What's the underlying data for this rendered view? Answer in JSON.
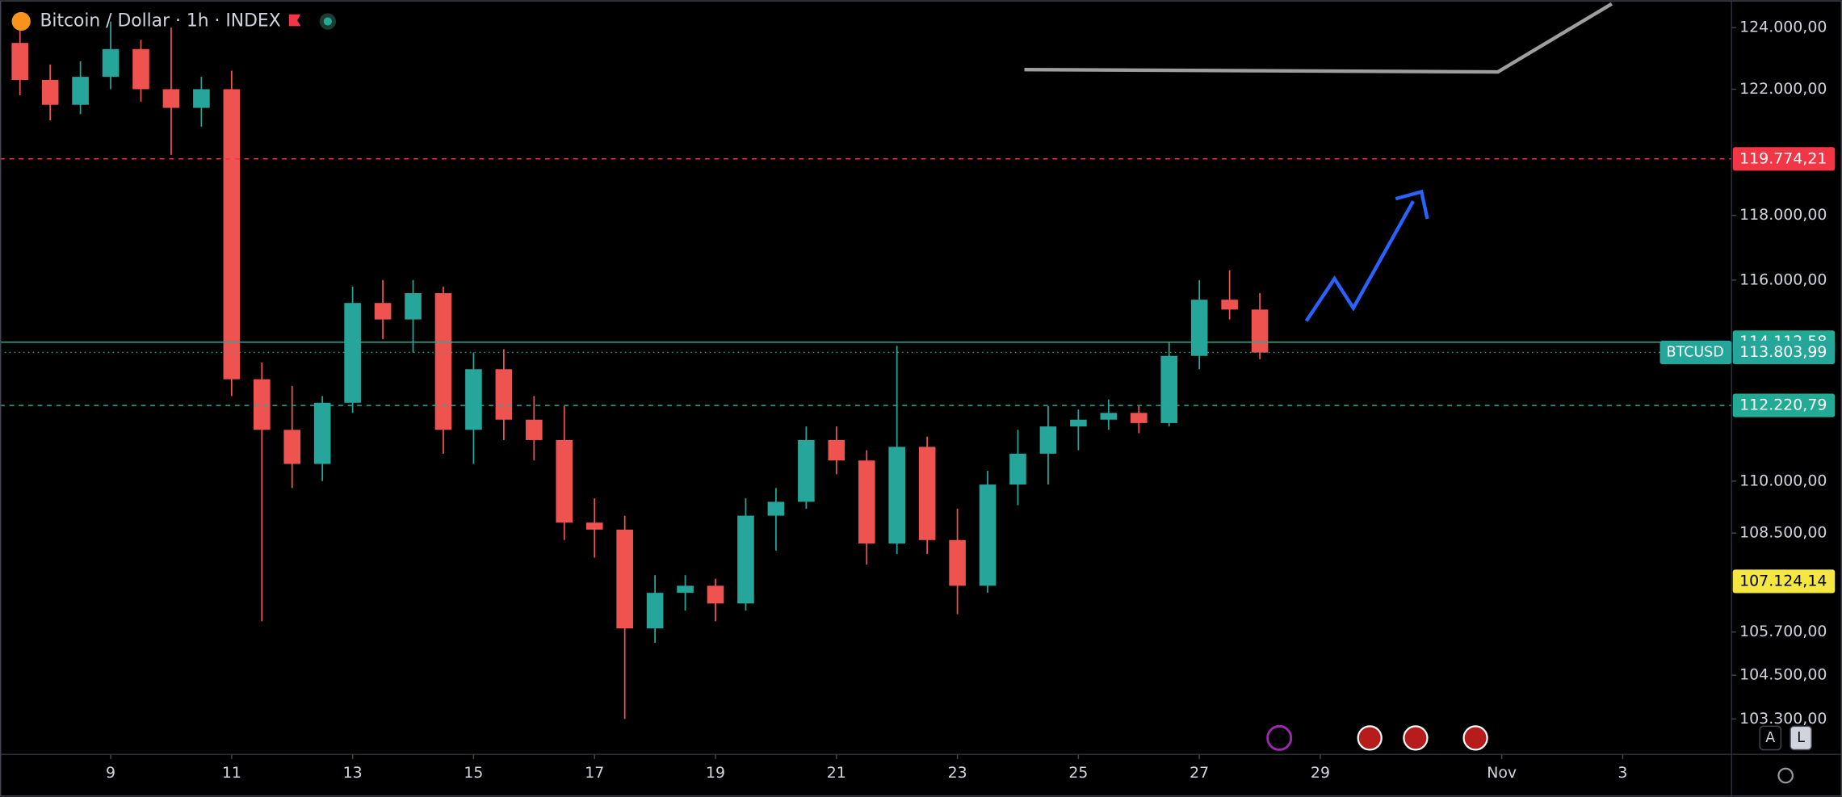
{
  "chart_data": {
    "type": "candlestick",
    "title": "Bitcoin / Dollar · 1h · INDEX",
    "log_scale": true,
    "up_color": "#26a69a",
    "down_color": "#ef5350",
    "x": [
      7.5,
      8,
      8.5,
      9,
      9.5,
      10,
      10.5,
      11,
      11.5,
      12,
      12.5,
      13,
      13.5,
      14,
      14.5,
      15,
      15.5,
      16,
      16.5,
      17,
      17.5,
      18,
      18.5,
      19,
      19.5,
      20,
      20.5,
      21,
      21.5,
      22,
      22.5,
      23,
      23.5,
      24,
      24.5,
      25,
      25.5,
      26,
      26.5,
      27,
      27.5,
      28
    ],
    "open": [
      123500,
      122300,
      121500,
      122400,
      123300,
      122000,
      121400,
      122000,
      113000,
      111500,
      110500,
      112300,
      115300,
      114800,
      115600,
      111500,
      113300,
      111800,
      111200,
      108800,
      108600,
      105800,
      106800,
      107000,
      106500,
      109000,
      109400,
      111200,
      110600,
      108200,
      111000,
      108300,
      107000,
      109900,
      110800,
      111600,
      111800,
      112000,
      111700,
      113700,
      115400,
      115100
    ],
    "high": [
      124300,
      122800,
      122900,
      124200,
      123600,
      124000,
      122400,
      122600,
      113500,
      112800,
      112500,
      115800,
      116000,
      116000,
      115800,
      113800,
      113900,
      112500,
      112200,
      109500,
      109000,
      107300,
      107300,
      107200,
      109500,
      109800,
      111600,
      111600,
      110900,
      114000,
      111300,
      109200,
      110300,
      111500,
      112200,
      112100,
      112400,
      112200,
      114100,
      116000,
      116300,
      115600
    ],
    "low": [
      121800,
      121000,
      121200,
      122000,
      121600,
      119900,
      120800,
      112500,
      106000,
      109800,
      110000,
      112000,
      114200,
      113800,
      110800,
      110500,
      111200,
      110600,
      108300,
      107800,
      103300,
      105400,
      106300,
      106000,
      106300,
      108000,
      109200,
      110200,
      107600,
      107900,
      107900,
      106200,
      106800,
      109300,
      109900,
      110900,
      111500,
      111400,
      111600,
      113300,
      114800,
      113600
    ],
    "close": [
      122300,
      121500,
      122400,
      123300,
      122000,
      121400,
      122000,
      113000,
      111500,
      110500,
      112300,
      115300,
      114800,
      115600,
      111500,
      113300,
      111800,
      111200,
      108800,
      108600,
      105800,
      106800,
      107000,
      106500,
      109000,
      109400,
      111200,
      110600,
      108200,
      111000,
      108300,
      107000,
      109900,
      110800,
      111600,
      111800,
      112000,
      111700,
      113700,
      115400,
      115100,
      113800
    ],
    "xlim": [
      7.17,
      35.8
    ],
    "xticks": [
      9,
      11,
      13,
      15,
      17,
      19,
      21,
      23,
      25,
      27,
      29,
      {
        "value": 32,
        "label": "Nov"
      },
      {
        "value": 34,
        "label": "3"
      }
    ],
    "ylim": [
      102400,
      124900
    ],
    "yticks": [
      {
        "value": 124000,
        "label": "124.000,00"
      },
      {
        "value": 122000,
        "label": "122.000,00"
      },
      {
        "value": 118000,
        "label": "118.000,00"
      },
      {
        "value": 116000,
        "label": "116.000,00"
      },
      {
        "value": 110000,
        "label": "110.000,00"
      },
      {
        "value": 108500,
        "label": "108.500,00"
      },
      {
        "value": 105700,
        "label": "105.700,00"
      },
      {
        "value": 104500,
        "label": "104.500,00"
      },
      {
        "value": 103300,
        "label": "103.300,00"
      }
    ],
    "price_lines": [
      {
        "price": {
          "value": 119774.21,
          "label": "119.774,21"
        },
        "color": "#f23645",
        "dash": "4 4"
      },
      {
        "price": {
          "value": 114112.58,
          "label": "114.112,58"
        },
        "color": "#22ab94",
        "dash": "none"
      },
      {
        "price": {
          "value": 113803.99,
          "label": "113.803,99"
        },
        "color": "#26a69a",
        "dash": "1 3",
        "symbol": "BTCUSD"
      },
      {
        "price": {
          "value": 112220.79,
          "label": "112.220,79"
        },
        "color": "#22ab94",
        "dash": "4 4"
      },
      {
        "price": {
          "value": 107124.14,
          "label": "107.124,14"
        },
        "color": "#f5e642",
        "dash": "hidden"
      }
    ],
    "scale_buttons": [
      "A",
      "L"
    ]
  }
}
